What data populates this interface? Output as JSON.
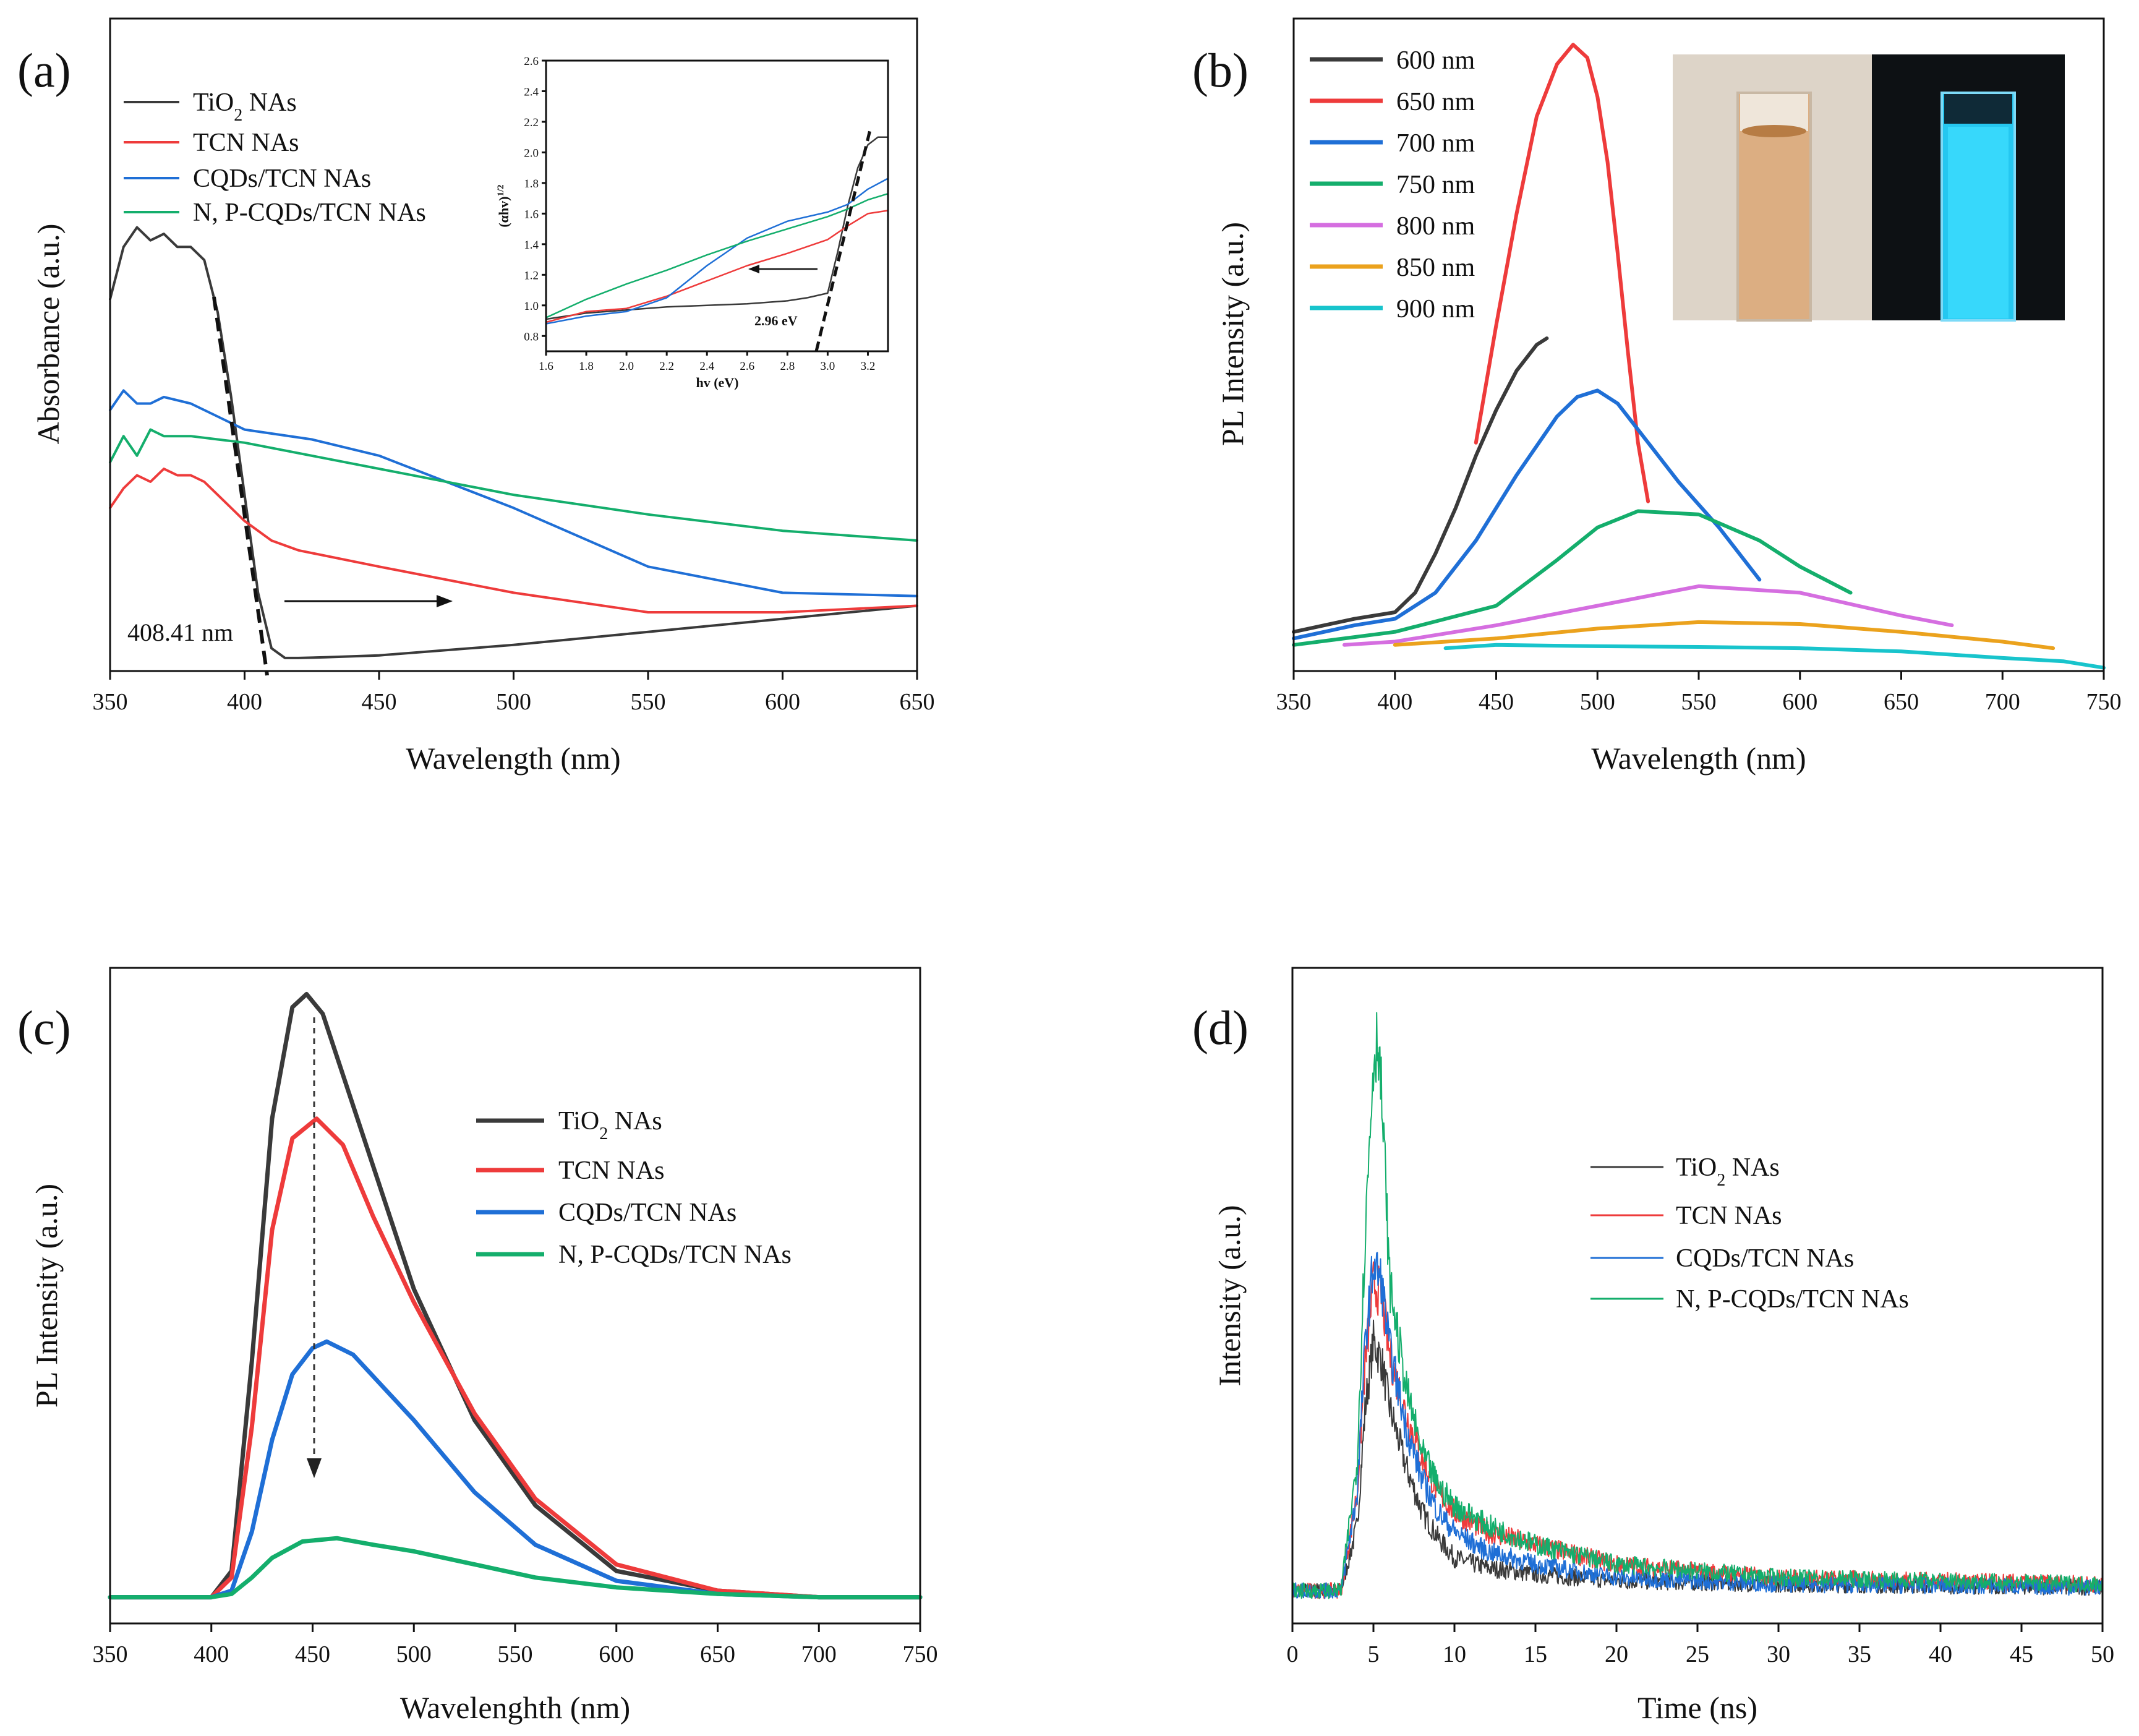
{
  "chart_data": [
    {
      "type": "line",
      "panel": "(a)",
      "xlabel": "Wavelength (nm)",
      "ylabel": "Absorbance (a.u.)",
      "xlim": [
        350,
        650
      ],
      "ylim": [
        0,
        1
      ],
      "xticks": [
        350,
        400,
        450,
        500,
        550,
        600,
        650
      ],
      "legend": {
        "placement": "top-left",
        "entries": [
          "TiO₂ NAs",
          "TCN NAs",
          "CQDs/TCN NAs",
          "N, P-CQDs/TCN NAs"
        ]
      },
      "colors": [
        "#3a3a3a",
        "#ee3b3b",
        "#1f6fd6",
        "#14ae6c"
      ],
      "series": [
        {
          "name": "TiO₂ NAs",
          "x": [
            350,
            355,
            360,
            365,
            370,
            375,
            380,
            385,
            390,
            395,
            400,
            405,
            410,
            415,
            420,
            430,
            450,
            500,
            550,
            600,
            650
          ],
          "y": [
            0.57,
            0.65,
            0.68,
            0.66,
            0.67,
            0.65,
            0.65,
            0.63,
            0.55,
            0.42,
            0.27,
            0.12,
            0.035,
            0.02,
            0.02,
            0.021,
            0.024,
            0.04,
            0.06,
            0.08,
            0.1
          ]
        },
        {
          "name": "TCN NAs",
          "x": [
            350,
            355,
            360,
            365,
            370,
            375,
            380,
            385,
            390,
            400,
            410,
            420,
            450,
            500,
            550,
            600,
            650
          ],
          "y": [
            0.25,
            0.28,
            0.3,
            0.29,
            0.31,
            0.3,
            0.3,
            0.29,
            0.27,
            0.23,
            0.2,
            0.185,
            0.16,
            0.12,
            0.09,
            0.09,
            0.1
          ]
        },
        {
          "name": "CQDs/TCN NAs",
          "x": [
            350,
            355,
            360,
            365,
            370,
            380,
            390,
            400,
            425,
            450,
            500,
            550,
            600,
            650
          ],
          "y": [
            0.4,
            0.43,
            0.41,
            0.41,
            0.42,
            0.41,
            0.39,
            0.37,
            0.355,
            0.33,
            0.25,
            0.16,
            0.12,
            0.115
          ]
        },
        {
          "name": "N, P-CQDs/TCN NAs",
          "x": [
            350,
            355,
            360,
            365,
            370,
            380,
            390,
            400,
            450,
            500,
            550,
            600,
            650
          ],
          "y": [
            0.32,
            0.36,
            0.33,
            0.37,
            0.36,
            0.36,
            0.355,
            0.35,
            0.31,
            0.27,
            0.24,
            0.215,
            0.2
          ]
        }
      ],
      "annotations": [
        {
          "text": "408.41 nm"
        }
      ],
      "inset": {
        "type": "line",
        "xlabel": "hv (eV)",
        "ylabel": "(αhv)1/2",
        "xlim": [
          1.6,
          3.3
        ],
        "ylim": [
          0.7,
          2.6
        ],
        "xticks": [
          1.6,
          1.8,
          2.0,
          2.2,
          2.4,
          2.6,
          2.8,
          3.0,
          3.2
        ],
        "yticks": [
          0.8,
          1.0,
          1.2,
          1.4,
          1.6,
          1.8,
          2.0,
          2.2,
          2.4,
          2.6
        ],
        "annotation": "2.96 eV",
        "series": [
          {
            "x": [
              1.6,
              1.8,
              2.0,
              2.2,
              2.4,
              2.6,
              2.8,
              2.9,
              3.0,
              3.05,
              3.1,
              3.15,
              3.2,
              3.25,
              3.3
            ],
            "y": [
              0.91,
              0.95,
              0.97,
              0.99,
              1.0,
              1.01,
              1.03,
              1.05,
              1.08,
              1.35,
              1.65,
              1.9,
              2.05,
              2.1,
              2.1
            ]
          },
          {
            "x": [
              1.6,
              1.8,
              2.0,
              2.2,
              2.4,
              2.6,
              2.8,
              3.0,
              3.1,
              3.2,
              3.3
            ],
            "y": [
              0.89,
              0.96,
              0.98,
              1.06,
              1.16,
              1.26,
              1.34,
              1.43,
              1.52,
              1.6,
              1.62
            ]
          },
          {
            "x": [
              1.6,
              1.8,
              2.0,
              2.2,
              2.4,
              2.6,
              2.8,
              3.0,
              3.1,
              3.2,
              3.3
            ],
            "y": [
              0.88,
              0.93,
              0.96,
              1.05,
              1.26,
              1.44,
              1.55,
              1.61,
              1.66,
              1.76,
              1.83
            ]
          },
          {
            "x": [
              1.6,
              1.8,
              2.0,
              2.2,
              2.4,
              2.6,
              2.8,
              3.0,
              3.1,
              3.2,
              3.3
            ],
            "y": [
              0.92,
              1.04,
              1.14,
              1.23,
              1.33,
              1.42,
              1.5,
              1.58,
              1.63,
              1.69,
              1.73
            ]
          }
        ]
      }
    },
    {
      "type": "line",
      "panel": "(b)",
      "xlabel": "Wavelength (nm)",
      "ylabel": "PL Intensity (a.u.)",
      "xlim": [
        350,
        750
      ],
      "ylim": [
        0,
        1
      ],
      "xticks": [
        350,
        400,
        450,
        500,
        550,
        600,
        650,
        700,
        750
      ],
      "legend": {
        "placement": "top-left",
        "entries": [
          "600 nm",
          "650 nm",
          "700 nm",
          "750 nm",
          "800 nm",
          "850 nm",
          "900 nm"
        ]
      },
      "colors": [
        "#3a3a3a",
        "#ee3b3b",
        "#1f6fd6",
        "#14ae6c",
        "#d56ee0",
        "#eba21d",
        "#18c4cc"
      ],
      "series": [
        {
          "name": "600 nm",
          "x": [
            350,
            380,
            400,
            410,
            420,
            430,
            440,
            450,
            460,
            470,
            475
          ],
          "y": [
            0.06,
            0.08,
            0.09,
            0.12,
            0.18,
            0.25,
            0.33,
            0.4,
            0.46,
            0.5,
            0.51
          ]
        },
        {
          "name": "650 nm",
          "x": [
            440,
            450,
            460,
            470,
            480,
            488,
            495,
            500,
            505,
            510,
            515,
            520,
            525
          ],
          "y": [
            0.35,
            0.53,
            0.7,
            0.85,
            0.93,
            0.96,
            0.94,
            0.88,
            0.78,
            0.64,
            0.49,
            0.35,
            0.26
          ]
        },
        {
          "name": "700 nm",
          "x": [
            350,
            380,
            400,
            420,
            440,
            460,
            480,
            490,
            500,
            510,
            520,
            540,
            560,
            580
          ],
          "y": [
            0.05,
            0.07,
            0.08,
            0.12,
            0.2,
            0.3,
            0.39,
            0.42,
            0.43,
            0.41,
            0.37,
            0.29,
            0.22,
            0.14
          ]
        },
        {
          "name": "750 nm",
          "x": [
            350,
            400,
            450,
            480,
            500,
            520,
            550,
            580,
            600,
            625
          ],
          "y": [
            0.04,
            0.06,
            0.1,
            0.17,
            0.22,
            0.245,
            0.24,
            0.2,
            0.16,
            0.12
          ]
        },
        {
          "name": "800 nm",
          "x": [
            375,
            400,
            450,
            500,
            550,
            600,
            650,
            675
          ],
          "y": [
            0.04,
            0.045,
            0.07,
            0.1,
            0.13,
            0.12,
            0.085,
            0.07
          ]
        },
        {
          "name": "850 nm",
          "x": [
            400,
            450,
            500,
            550,
            600,
            650,
            700,
            725
          ],
          "y": [
            0.04,
            0.05,
            0.065,
            0.075,
            0.072,
            0.06,
            0.045,
            0.035
          ]
        },
        {
          "name": "900 nm",
          "x": [
            425,
            450,
            500,
            550,
            600,
            650,
            700,
            730,
            750
          ],
          "y": [
            0.035,
            0.04,
            0.038,
            0.037,
            0.035,
            0.03,
            0.02,
            0.015,
            0.005
          ]
        }
      ]
    },
    {
      "type": "line",
      "panel": "(c)",
      "xlabel": "Wavelenghth (nm)",
      "ylabel": "PL Intensity (a.u.)",
      "xlim": [
        350,
        750
      ],
      "ylim": [
        0,
        1
      ],
      "xticks": [
        350,
        400,
        450,
        500,
        550,
        600,
        650,
        700,
        750
      ],
      "legend": {
        "placement": "center-right",
        "entries": [
          "TiO₂ NAs",
          "TCN NAs",
          "CQDs/TCN NAs",
          "N, P-CQDs/TCN NAs"
        ]
      },
      "colors": [
        "#3a3a3a",
        "#ee3b3b",
        "#1f6fd6",
        "#14ae6c"
      ],
      "series": [
        {
          "name": "TiO₂ NAs",
          "x": [
            350,
            400,
            410,
            420,
            430,
            440,
            447,
            455,
            470,
            500,
            530,
            560,
            600,
            650,
            700,
            750
          ],
          "y": [
            0.04,
            0.04,
            0.08,
            0.4,
            0.77,
            0.94,
            0.96,
            0.93,
            0.79,
            0.51,
            0.31,
            0.18,
            0.08,
            0.05,
            0.04,
            0.04
          ]
        },
        {
          "name": "TCN NAs",
          "x": [
            350,
            400,
            410,
            420,
            430,
            440,
            452,
            465,
            480,
            500,
            530,
            560,
            600,
            650,
            700,
            750
          ],
          "y": [
            0.04,
            0.04,
            0.07,
            0.3,
            0.6,
            0.74,
            0.77,
            0.73,
            0.62,
            0.49,
            0.32,
            0.19,
            0.09,
            0.05,
            0.04,
            0.04
          ]
        },
        {
          "name": "CQDs/TCN NAs",
          "x": [
            350,
            400,
            410,
            420,
            430,
            440,
            450,
            457,
            470,
            500,
            530,
            560,
            600,
            650,
            700,
            750
          ],
          "y": [
            0.04,
            0.04,
            0.05,
            0.14,
            0.28,
            0.38,
            0.42,
            0.43,
            0.41,
            0.31,
            0.2,
            0.12,
            0.065,
            0.045,
            0.04,
            0.04
          ]
        },
        {
          "name": "N, P-CQDs/TCN NAs",
          "x": [
            350,
            400,
            410,
            420,
            430,
            445,
            462,
            480,
            500,
            530,
            560,
            600,
            650,
            700,
            750
          ],
          "y": [
            0.04,
            0.04,
            0.045,
            0.07,
            0.1,
            0.125,
            0.13,
            0.12,
            0.11,
            0.09,
            0.07,
            0.055,
            0.045,
            0.04,
            0.04
          ]
        }
      ]
    },
    {
      "type": "line",
      "panel": "(d)",
      "xlabel": "Time (ns)",
      "ylabel": "Intensity (a.u.)",
      "xlim": [
        0,
        50
      ],
      "ylim": [
        0,
        1
      ],
      "xticks": [
        0,
        5,
        10,
        15,
        20,
        25,
        30,
        35,
        40,
        45,
        50
      ],
      "legend": {
        "placement": "center-right",
        "entries": [
          "TiO₂ NAs",
          "TCN NAs",
          "CQDs/TCN NAs",
          "N, P-CQDs/TCN NAs"
        ]
      },
      "colors": [
        "#3a3a3a",
        "#ee3b3b",
        "#1f6fd6",
        "#14ae6c"
      ],
      "series": [
        {
          "name": "TiO₂ NAs",
          "x": [
            0,
            3,
            4,
            4.5,
            5,
            5.5,
            6,
            7,
            8,
            9,
            10,
            12,
            15,
            20,
            30,
            50
          ],
          "y": [
            0.05,
            0.05,
            0.15,
            0.33,
            0.43,
            0.4,
            0.33,
            0.24,
            0.17,
            0.13,
            0.1,
            0.085,
            0.075,
            0.065,
            0.06,
            0.055
          ]
        },
        {
          "name": "TCN NAs",
          "x": [
            0,
            3,
            4,
            4.5,
            5,
            5.5,
            6,
            7,
            8,
            9,
            10,
            12,
            15,
            20,
            30,
            50
          ],
          "y": [
            0.05,
            0.05,
            0.2,
            0.4,
            0.52,
            0.5,
            0.41,
            0.32,
            0.25,
            0.2,
            0.17,
            0.14,
            0.12,
            0.09,
            0.07,
            0.06
          ]
        },
        {
          "name": "CQDs/TCN NAs",
          "x": [
            0,
            3,
            4,
            4.5,
            5,
            5.5,
            6,
            7,
            8,
            9,
            10,
            12,
            15,
            20,
            30,
            50
          ],
          "y": [
            0.05,
            0.05,
            0.2,
            0.43,
            0.55,
            0.52,
            0.42,
            0.3,
            0.22,
            0.17,
            0.14,
            0.11,
            0.09,
            0.07,
            0.06,
            0.055
          ]
        },
        {
          "name": "N, P-CQDs/TCN NAs",
          "x": [
            0,
            3,
            4,
            4.5,
            5,
            5.3,
            5.7,
            6,
            7,
            8,
            9,
            10,
            12,
            15,
            20,
            30,
            50
          ],
          "y": [
            0.05,
            0.05,
            0.25,
            0.6,
            0.86,
            0.9,
            0.7,
            0.52,
            0.36,
            0.26,
            0.21,
            0.18,
            0.15,
            0.12,
            0.09,
            0.07,
            0.06
          ]
        }
      ]
    }
  ]
}
